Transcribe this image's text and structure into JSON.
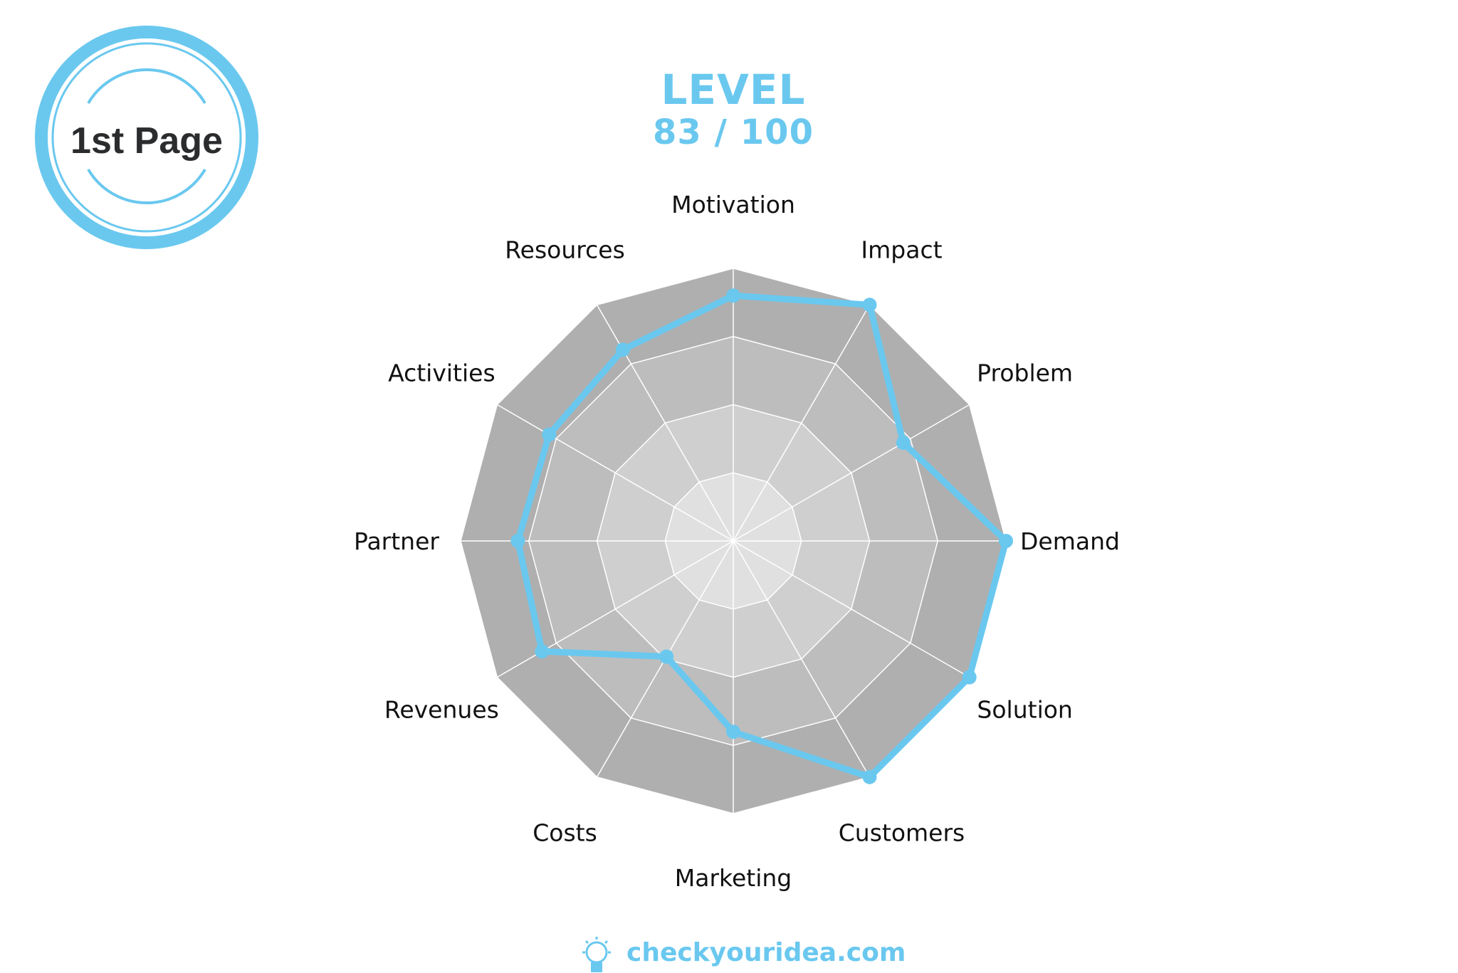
{
  "badge": {
    "label": "1st Page"
  },
  "header": {
    "title": "LEVEL",
    "score": "83 / 100"
  },
  "footer": {
    "brand": "checkyouridea.com",
    "icon": "lightbulb-brain-icon"
  },
  "colors": {
    "accent": "#6ac8ef",
    "ring_outer": "#afafaf",
    "ring_2": "#bdbdbd",
    "ring_3": "#cfcfcf",
    "ring_inner": "#e0e0e0",
    "text": "#111111"
  },
  "chart_data": {
    "type": "radar",
    "categories": [
      "Motivation",
      "Impact",
      "Problem",
      "Demand",
      "Solution",
      "Customers",
      "Marketing",
      "Costs",
      "Revenues",
      "Partner",
      "Activities",
      "Resources"
    ],
    "values": [
      90,
      100,
      72,
      100,
      100,
      100,
      70,
      49,
      81,
      79,
      78,
      81
    ],
    "range": [
      0,
      100
    ],
    "levels": 4,
    "grid": true
  }
}
